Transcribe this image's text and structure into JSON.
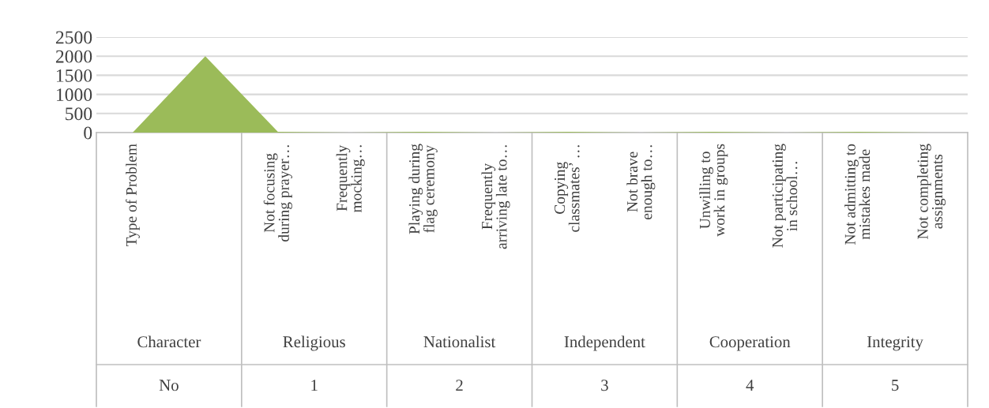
{
  "chart_data": {
    "type": "area",
    "categories": [
      "Type of Problem",
      null,
      "Not focusing during prayer…",
      "Frequently mocking…",
      "Playing during flag ceremony",
      "Frequently arriving late to…",
      "Copying classmates’ …",
      "Not brave enough to…",
      "Unwilling to work in groups",
      "Not participating in school…",
      "Not admitting to mistakes made",
      "Not completing assignments"
    ],
    "series": [
      {
        "color": "#9bbb59",
        "values": [
          0,
          2000,
          20,
          0,
          20,
          0,
          20,
          0,
          20,
          0,
          20,
          0
        ]
      }
    ],
    "ylim": [
      0,
      2500
    ],
    "yticks": [
      0,
      500,
      1000,
      1500,
      2000,
      2500
    ],
    "grid": "y",
    "legend": false,
    "annotations": [
      "Character",
      "Religious",
      "Nationalist",
      "Independent",
      "Cooperation",
      "Integrity",
      "No",
      "1",
      "2",
      "3",
      "4",
      "5"
    ]
  }
}
